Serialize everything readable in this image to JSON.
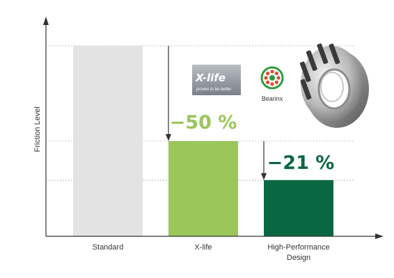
{
  "chart_data": {
    "type": "bar",
    "ylabel": "Friction Level",
    "categories": [
      "Standard",
      "X-life",
      "High-Performance Design"
    ],
    "category_lines": [
      [
        "Standard"
      ],
      [
        "X-life"
      ],
      [
        "High-Performance",
        "Design"
      ]
    ],
    "values": [
      100,
      50,
      29.5
    ],
    "reference_levels": [
      100,
      50,
      29.5
    ],
    "grid": "dotted horizontal reference lines",
    "bar_colors": [
      "#e3e3e3",
      "#9ac65a",
      "#0a6743"
    ],
    "annotations": [
      {
        "text": "−50 %",
        "color": "#9ac65a",
        "from_level": 100,
        "to_level": 50,
        "category": "X-life"
      },
      {
        "text": "−21 %",
        "color": "#0a6743",
        "from_level": 50,
        "to_level": 29.5,
        "category": "High-Performance Design"
      }
    ]
  },
  "logos": {
    "xlife": {
      "word": "X-life",
      "tagline": "proven to be better",
      "color": "#8a8f98"
    },
    "bearinx": {
      "word": "Bearinx",
      "color": "#2f9a3f"
    }
  },
  "icons": [
    "tapered-roller-bearing-icon",
    "bearinx-logo-icon",
    "xlife-logo-icon"
  ]
}
